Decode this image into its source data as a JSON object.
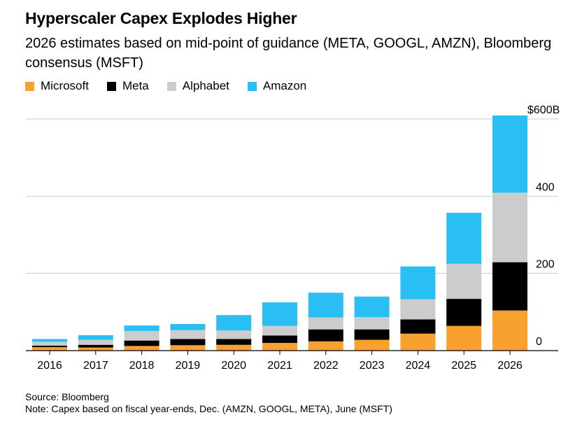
{
  "title": "Hyperscaler Capex Explodes Higher",
  "subtitle": "2026 estimates based on mid-point of guidance (META, GOOGL, AMZN), Bloomberg consensus (MSFT)",
  "source": "Source: Bloomberg",
  "note": "Note: Capex based on fiscal year-ends, Dec. (AMZN, GOOGL, META), June (MSFT)",
  "chart_data": {
    "type": "bar",
    "stacked": true,
    "categories": [
      "2016",
      "2017",
      "2018",
      "2019",
      "2020",
      "2021",
      "2022",
      "2023",
      "2024",
      "2025",
      "2026"
    ],
    "series": [
      {
        "name": "Microsoft",
        "color": "#F9A12E",
        "values": [
          9,
          8,
          12,
          14,
          15,
          20,
          24,
          28,
          44,
          64,
          104
        ]
      },
      {
        "name": "Meta",
        "color": "#000000",
        "values": [
          4,
          7,
          14,
          16,
          15,
          19,
          31,
          27,
          37,
          70,
          125
        ]
      },
      {
        "name": "Alphabet",
        "color": "#CCCCCC",
        "values": [
          10,
          13,
          25,
          23,
          22,
          25,
          31,
          32,
          52,
          91,
          180
        ]
      },
      {
        "name": "Amazon",
        "color": "#29BFF5",
        "values": [
          7,
          12,
          14,
          16,
          40,
          61,
          64,
          53,
          85,
          132,
          200
        ]
      }
    ],
    "y_ticks": [
      {
        "value": 0,
        "label": "0"
      },
      {
        "value": 200,
        "label": "200"
      },
      {
        "value": 400,
        "label": "400"
      },
      {
        "value": 600,
        "label": "$600B"
      }
    ],
    "ylim": [
      0,
      600
    ],
    "grid": true,
    "y_axis_side": "right",
    "legend_position": "top-left"
  }
}
